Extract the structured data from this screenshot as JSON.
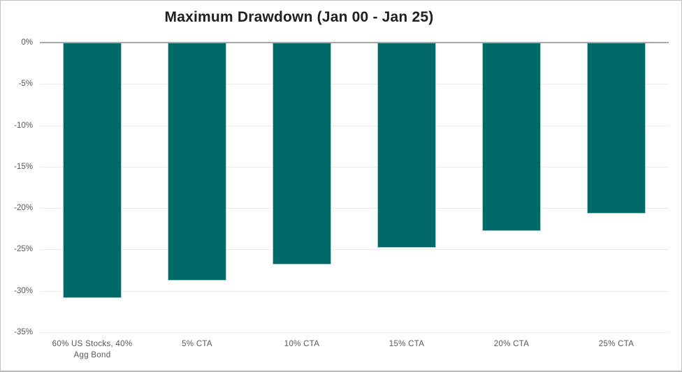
{
  "chart_data": {
    "type": "bar",
    "title": "Maximum Drawdown (Jan 00 - Jan 25)",
    "categories": [
      "60% US Stocks, 40%\nAgg Bond",
      "5% CTA",
      "10% CTA",
      "15% CTA",
      "20% CTA",
      "25% CTA"
    ],
    "values": [
      -30.9,
      -28.8,
      -26.8,
      -24.8,
      -22.8,
      -20.7
    ],
    "unit": "%",
    "xlabel": "",
    "ylabel": "",
    "ylim": [
      -35,
      0
    ],
    "ytick_step": 5,
    "ytick_labels": [
      "0%",
      "-5%",
      "-10%",
      "-15%",
      "-20%",
      "-25%",
      "-30%",
      "-35%"
    ],
    "grid": true,
    "legend": false,
    "colors": {
      "bar_fill": "#026969",
      "bar_border": "#a9cfcf",
      "gridline": "#ececec",
      "zero_axis": "#a9a9a9",
      "tick_label": "#595959",
      "title": "#1f1f1f",
      "background": "#ffffff",
      "frame_border": "#c2c2c2"
    }
  }
}
